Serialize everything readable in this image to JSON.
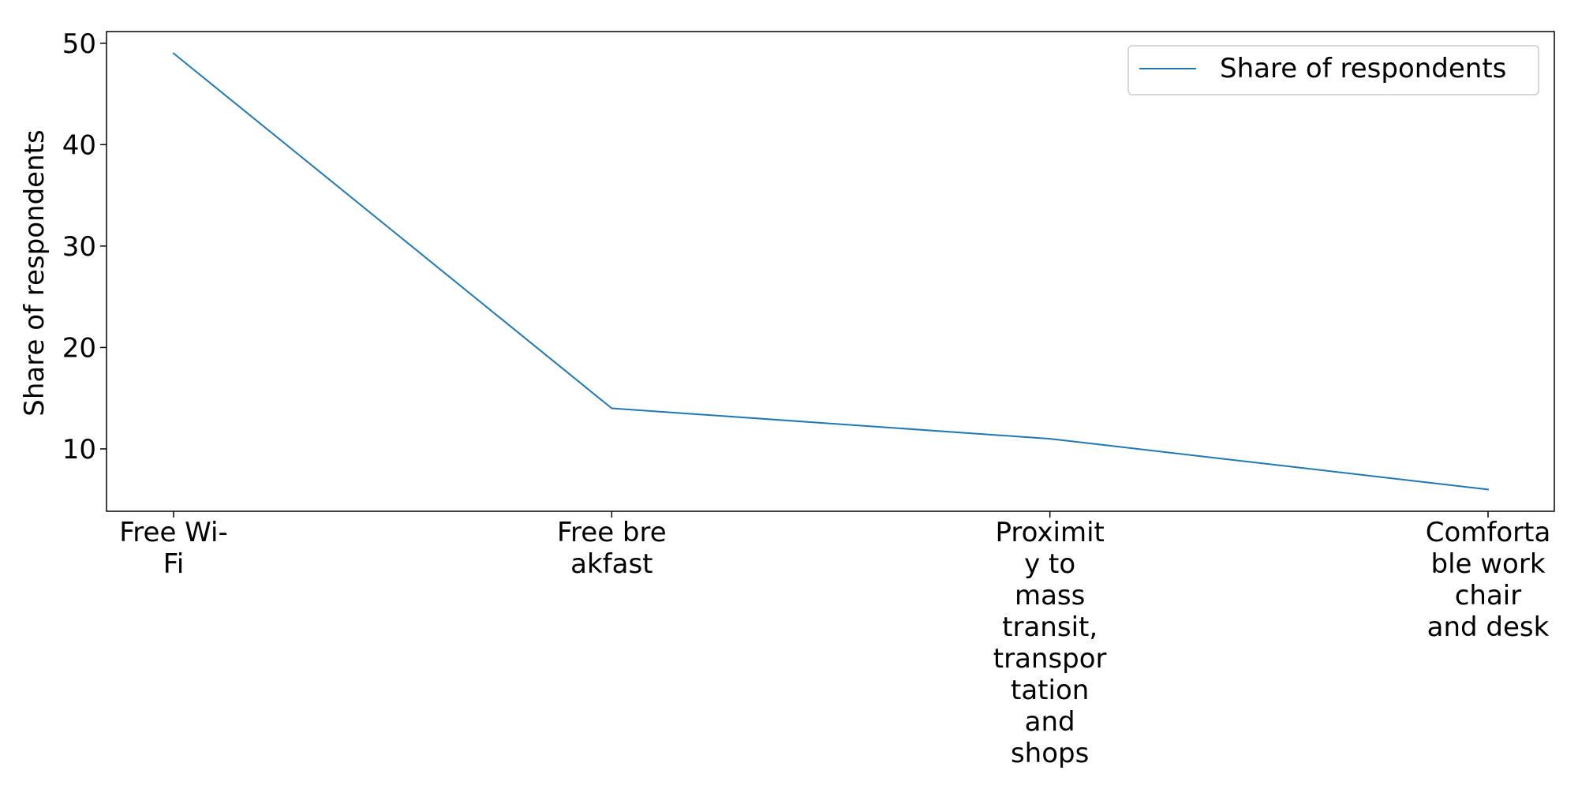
{
  "chart_data": {
    "type": "line",
    "title": "",
    "xlabel": "",
    "ylabel": "Share of respondents",
    "categories": [
      [
        "Free Wi-",
        "Fi"
      ],
      [
        "Free bre",
        "akfast"
      ],
      [
        "Proximit",
        "y to",
        "mass",
        "transit,",
        "transpor",
        "tation",
        "and",
        "shops"
      ],
      [
        "Comforta",
        "ble work",
        "chair",
        "and desk"
      ]
    ],
    "series": [
      {
        "name": "Share of respondents",
        "color": "#1f77b4",
        "values": [
          49,
          14,
          11,
          6
        ]
      }
    ],
    "ylim": [
      3.85,
      51.15
    ],
    "yticks": [
      10,
      20,
      30,
      40,
      50
    ],
    "grid": false,
    "legend_position": "upper right"
  }
}
